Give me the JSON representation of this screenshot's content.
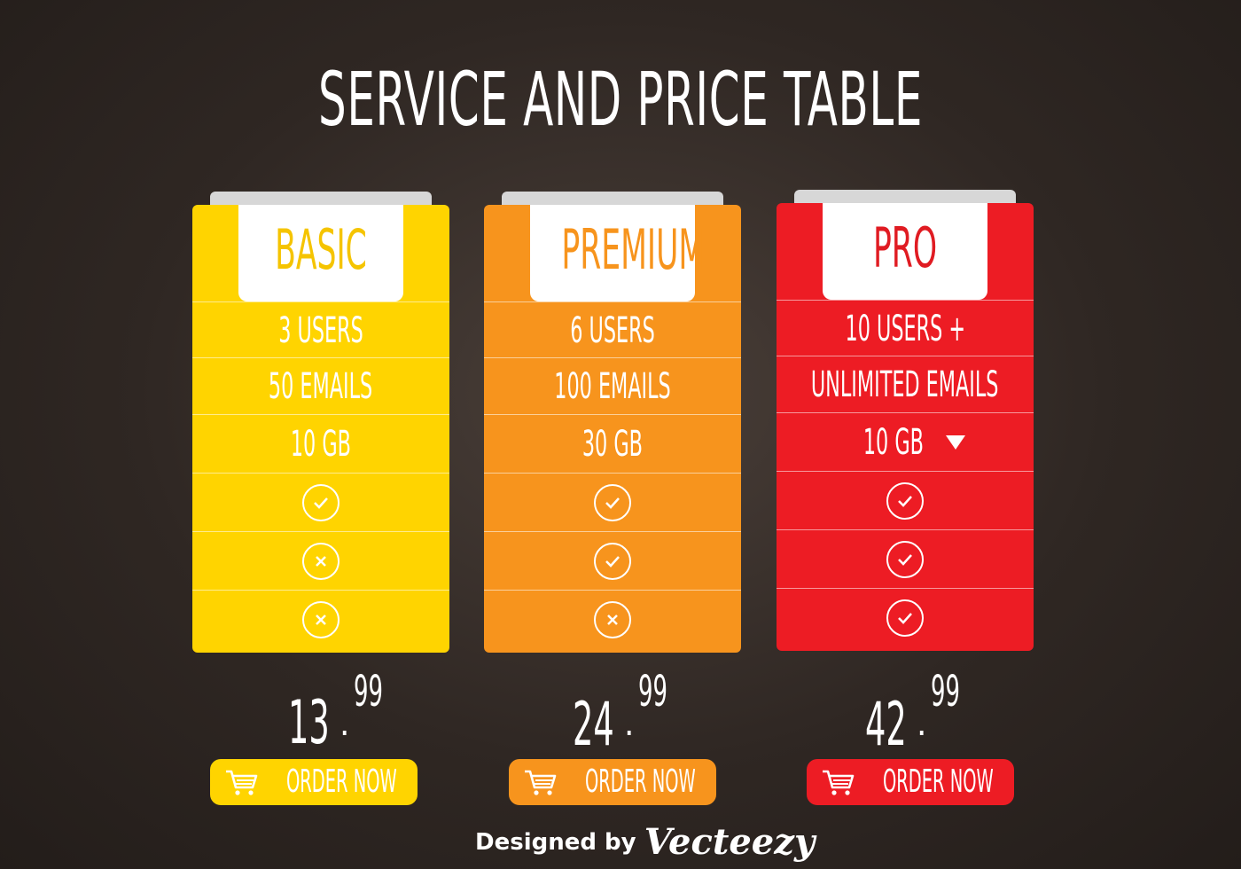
{
  "title": "SERVICE AND PRICE TABLE",
  "plans": [
    {
      "name": "BASIC",
      "color": "#ffd400",
      "name_color": "#f5c400",
      "features": [
        "3 USERS",
        "50 EMAILS",
        "10 GB"
      ],
      "checks": [
        "check-icon",
        "cross-icon",
        "cross-icon"
      ],
      "price_int": "13",
      "price_cents": "99",
      "order_label": "ORDER NOW"
    },
    {
      "name": "PREMIUM",
      "color": "#f7941d",
      "name_color": "#f7941d",
      "features": [
        "6 USERS",
        "100 EMAILS",
        "30 GB"
      ],
      "checks": [
        "check-icon",
        "check-icon",
        "cross-icon"
      ],
      "price_int": "24",
      "price_cents": "99",
      "order_label": "ORDER NOW"
    },
    {
      "name": "PRO",
      "color": "#ed1c24",
      "name_color": "#e01b22",
      "features": [
        "10 USERS +",
        "UNLIMITED EMAILS",
        "10 GB"
      ],
      "checks": [
        "check-icon",
        "check-icon",
        "check-icon"
      ],
      "price_int": "42",
      "price_cents": "99",
      "order_label": "ORDER NOW"
    }
  ],
  "credit": {
    "designed_by": "Designed by",
    "brand": "Vecteezy"
  }
}
